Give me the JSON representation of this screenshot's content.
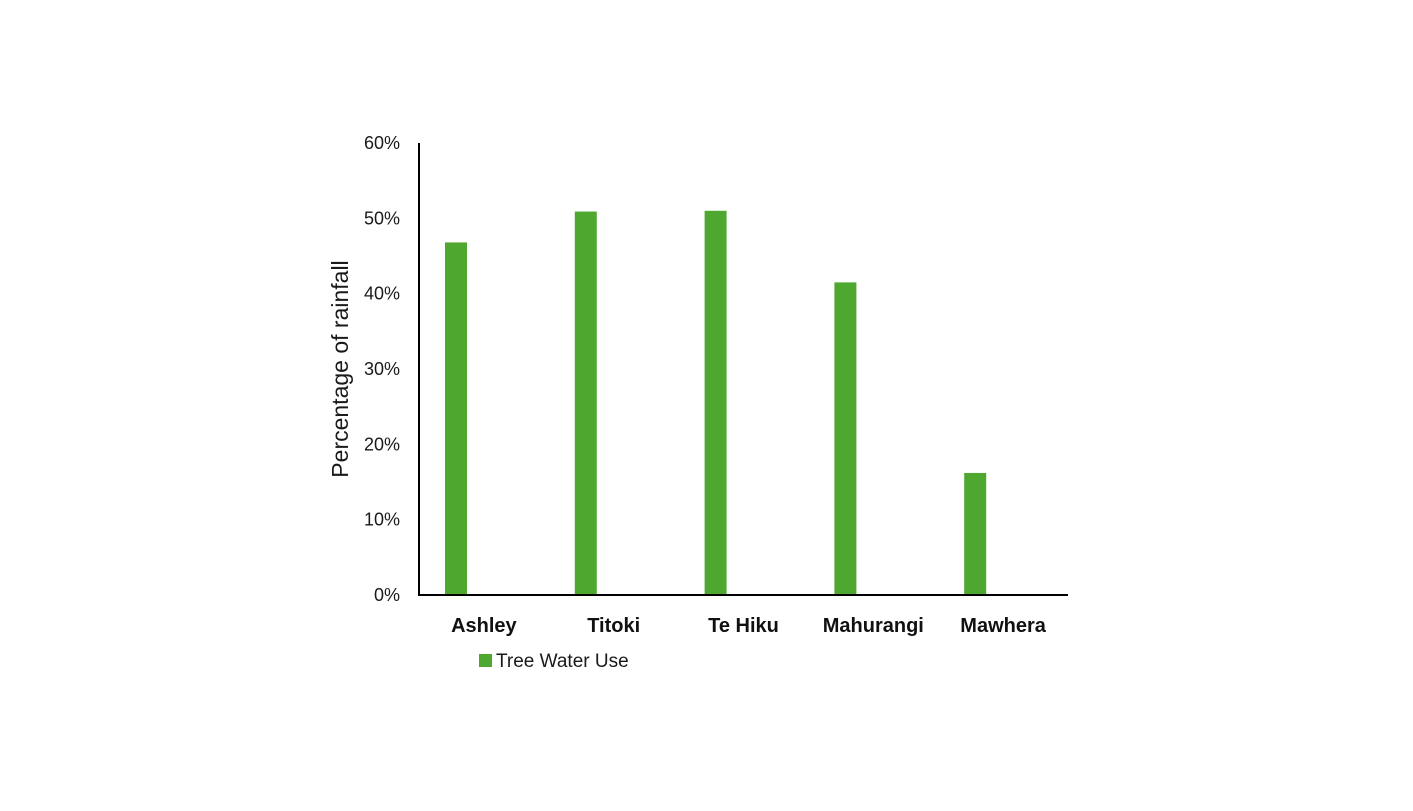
{
  "chart_data": {
    "type": "bar",
    "title": "",
    "xlabel": "",
    "ylabel": "Percentage of rainfall",
    "categories": [
      "Ashley",
      "Titoki",
      "Te Hiku",
      "Mahurangi",
      "Mawhera"
    ],
    "series": [
      {
        "name": "Tree Water Use",
        "values": [
          46.8,
          50.9,
          51.0,
          41.5,
          16.2
        ],
        "color": "#4ea72e"
      }
    ],
    "ylim": [
      0,
      60
    ],
    "yticks": [
      0,
      10,
      20,
      30,
      40,
      50,
      60
    ],
    "ytick_labels": [
      "0%",
      "10%",
      "20%",
      "30%",
      "40%",
      "50%",
      "60%"
    ],
    "grid": false,
    "legend_position": "bottom-left"
  }
}
